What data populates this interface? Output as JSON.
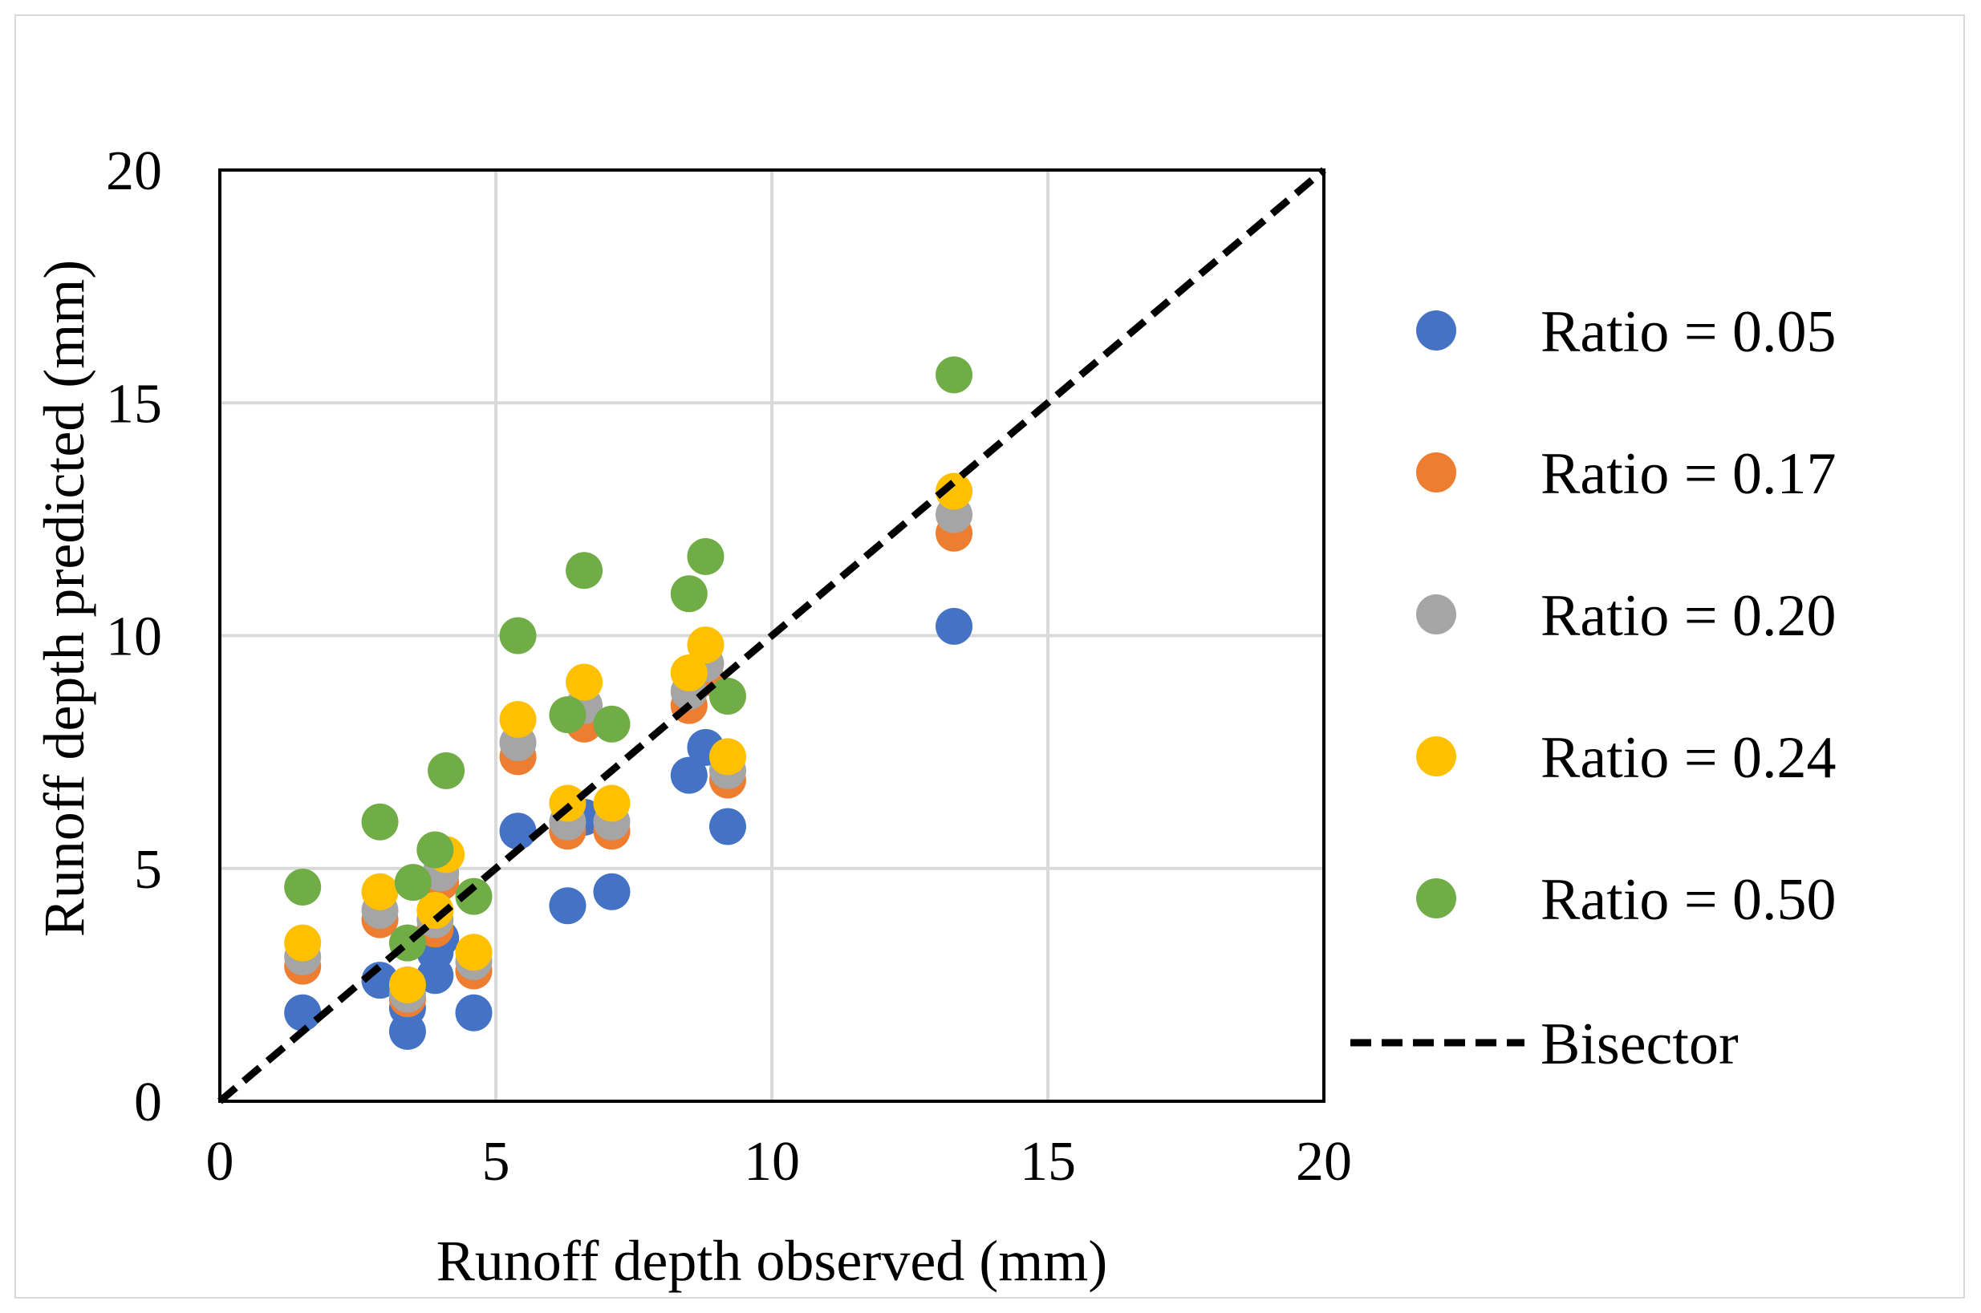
{
  "chart_data": {
    "type": "scatter",
    "title": "",
    "xlabel": "Runoff depth observed (mm)",
    "ylabel": "Runoff depth predicted (mm)",
    "xlim": [
      0,
      20
    ],
    "ylim": [
      0,
      20
    ],
    "xticks": [
      "0",
      "5",
      "10",
      "15",
      "20"
    ],
    "yticks": [
      "0",
      "5",
      "10",
      "15",
      "20"
    ],
    "grid": true,
    "legend_position": "right",
    "series": [
      {
        "name": "Ratio = 0.05",
        "color": "#4472C4",
        "points": [
          [
            1.5,
            1.9
          ],
          [
            2.9,
            2.6
          ],
          [
            3.4,
            1.5
          ],
          [
            3.4,
            2.0
          ],
          [
            3.9,
            2.7
          ],
          [
            3.9,
            3.2
          ],
          [
            4.0,
            3.5
          ],
          [
            4.6,
            1.9
          ],
          [
            5.4,
            5.8
          ],
          [
            6.3,
            4.2
          ],
          [
            6.6,
            6.1
          ],
          [
            7.1,
            4.5
          ],
          [
            8.5,
            7.0
          ],
          [
            8.8,
            7.6
          ],
          [
            9.2,
            5.9
          ],
          [
            13.3,
            10.2
          ]
        ]
      },
      {
        "name": "Ratio = 0.17",
        "color": "#ED7D31",
        "points": [
          [
            1.5,
            2.9
          ],
          [
            2.9,
            3.9
          ],
          [
            3.4,
            2.2
          ],
          [
            3.9,
            3.7
          ],
          [
            4.0,
            4.7
          ],
          [
            4.6,
            2.8
          ],
          [
            5.4,
            7.4
          ],
          [
            6.3,
            5.8
          ],
          [
            6.6,
            8.1
          ],
          [
            7.1,
            5.8
          ],
          [
            8.5,
            8.5
          ],
          [
            8.8,
            9.1
          ],
          [
            9.2,
            6.9
          ],
          [
            13.3,
            12.2
          ]
        ]
      },
      {
        "name": "Ratio = 0.20",
        "color": "#A5A5A5",
        "points": [
          [
            1.5,
            3.1
          ],
          [
            2.9,
            4.1
          ],
          [
            3.4,
            2.3
          ],
          [
            3.9,
            3.9
          ],
          [
            4.0,
            4.9
          ],
          [
            4.6,
            3.0
          ],
          [
            5.4,
            7.7
          ],
          [
            6.3,
            6.0
          ],
          [
            6.6,
            8.5
          ],
          [
            7.1,
            6.0
          ],
          [
            8.5,
            8.8
          ],
          [
            8.8,
            9.4
          ],
          [
            9.2,
            7.1
          ],
          [
            13.3,
            12.6
          ]
        ]
      },
      {
        "name": "Ratio = 0.24",
        "color": "#FFC000",
        "points": [
          [
            1.5,
            3.4
          ],
          [
            2.9,
            4.5
          ],
          [
            3.4,
            2.5
          ],
          [
            3.9,
            4.1
          ],
          [
            4.1,
            5.3
          ],
          [
            4.6,
            3.2
          ],
          [
            5.4,
            8.2
          ],
          [
            6.3,
            6.4
          ],
          [
            6.6,
            9.0
          ],
          [
            7.1,
            6.4
          ],
          [
            8.5,
            9.2
          ],
          [
            8.8,
            9.8
          ],
          [
            9.2,
            7.4
          ],
          [
            13.3,
            13.1
          ]
        ]
      },
      {
        "name": "Ratio = 0.50",
        "color": "#70AD47",
        "points": [
          [
            1.5,
            4.6
          ],
          [
            2.9,
            6.0
          ],
          [
            3.4,
            3.4
          ],
          [
            3.5,
            4.7
          ],
          [
            3.9,
            5.4
          ],
          [
            4.1,
            7.1
          ],
          [
            4.6,
            4.4
          ],
          [
            5.4,
            10.0
          ],
          [
            6.3,
            8.3
          ],
          [
            6.6,
            11.4
          ],
          [
            7.1,
            8.1
          ],
          [
            8.5,
            10.9
          ],
          [
            8.8,
            11.7
          ],
          [
            9.2,
            8.7
          ],
          [
            13.3,
            15.6
          ]
        ]
      }
    ],
    "reference_line": {
      "name": "Bisector",
      "color": "#000000",
      "from": [
        0,
        0
      ],
      "to": [
        20,
        20
      ]
    }
  }
}
